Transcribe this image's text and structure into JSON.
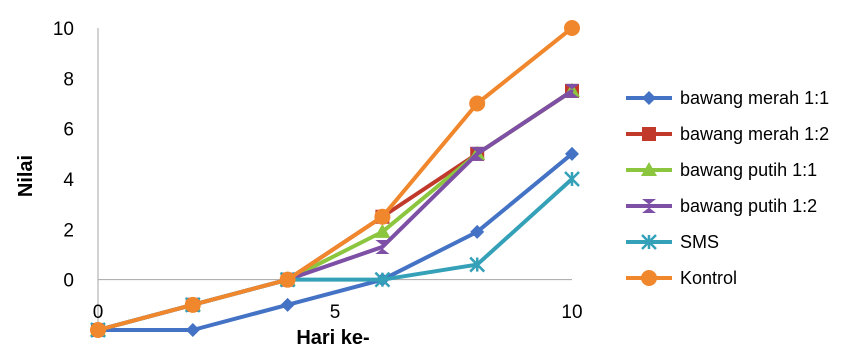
{
  "chart_data": {
    "type": "line",
    "xlabel": "Hari ke-",
    "ylabel": "Nilai",
    "x": [
      0,
      2,
      4,
      6,
      8,
      10
    ],
    "xlim": [
      0,
      10
    ],
    "ylim": [
      -2,
      10
    ],
    "yticks": [
      0,
      2,
      4,
      6,
      8,
      10
    ],
    "xtick_labels": [
      {
        "value": 0,
        "label": "0"
      },
      {
        "value": 5,
        "label": "5"
      },
      {
        "value": 10,
        "label": "10"
      }
    ],
    "legend_position": "right",
    "grid": false,
    "series": [
      {
        "name": "bawang merah 1:1",
        "color": "#4472c4",
        "marker": "diamond",
        "values": [
          -2,
          -2,
          -1,
          0,
          1.9,
          5
        ]
      },
      {
        "name": "bawang merah 1:2",
        "color": "#c0392b",
        "marker": "square",
        "values": [
          -2,
          -1,
          0,
          2.5,
          5,
          7.5
        ]
      },
      {
        "name": "bawang putih 1:1",
        "color": "#8cc63f",
        "marker": "triangle",
        "values": [
          -2,
          -1,
          0,
          1.9,
          5,
          7.5
        ]
      },
      {
        "name": "bawang putih 1:2",
        "color": "#7d4fa5",
        "marker": "hourglass",
        "values": [
          -2,
          -1,
          0,
          1.3,
          5,
          7.5
        ]
      },
      {
        "name": "SMS",
        "color": "#34a1b8",
        "marker": "asterisk",
        "values": [
          -2,
          -1,
          0,
          0,
          0.6,
          4
        ]
      },
      {
        "name": " Kontrol",
        "color": "#f0872d",
        "marker": "circle",
        "values": [
          -2,
          -1,
          0,
          2.5,
          7,
          10
        ]
      }
    ]
  }
}
